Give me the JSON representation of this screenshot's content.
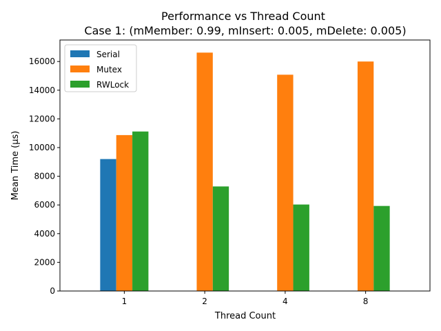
{
  "chart_data": {
    "type": "bar",
    "title": "Performance vs Thread Count",
    "subtitle": "Case 1: (mMember: 0.99, mInsert: 0.005, mDelete: 0.005)",
    "xlabel": "Thread Count",
    "ylabel": "Mean Time (µs)",
    "categories": [
      "1",
      "2",
      "4",
      "8"
    ],
    "ylim": [
      0,
      17500
    ],
    "yticks": [
      0,
      2000,
      4000,
      6000,
      8000,
      10000,
      12000,
      14000,
      16000
    ],
    "grid": false,
    "legend_position": "top-left",
    "series": [
      {
        "name": "Serial",
        "color": "#1f77b4",
        "values": [
          9200,
          null,
          null,
          null
        ]
      },
      {
        "name": "Mutex",
        "color": "#ff7f0e",
        "values": [
          10870,
          16620,
          15080,
          16000
        ]
      },
      {
        "name": "RWLock",
        "color": "#2ca02c",
        "values": [
          11120,
          7290,
          6030,
          5930
        ]
      }
    ]
  }
}
